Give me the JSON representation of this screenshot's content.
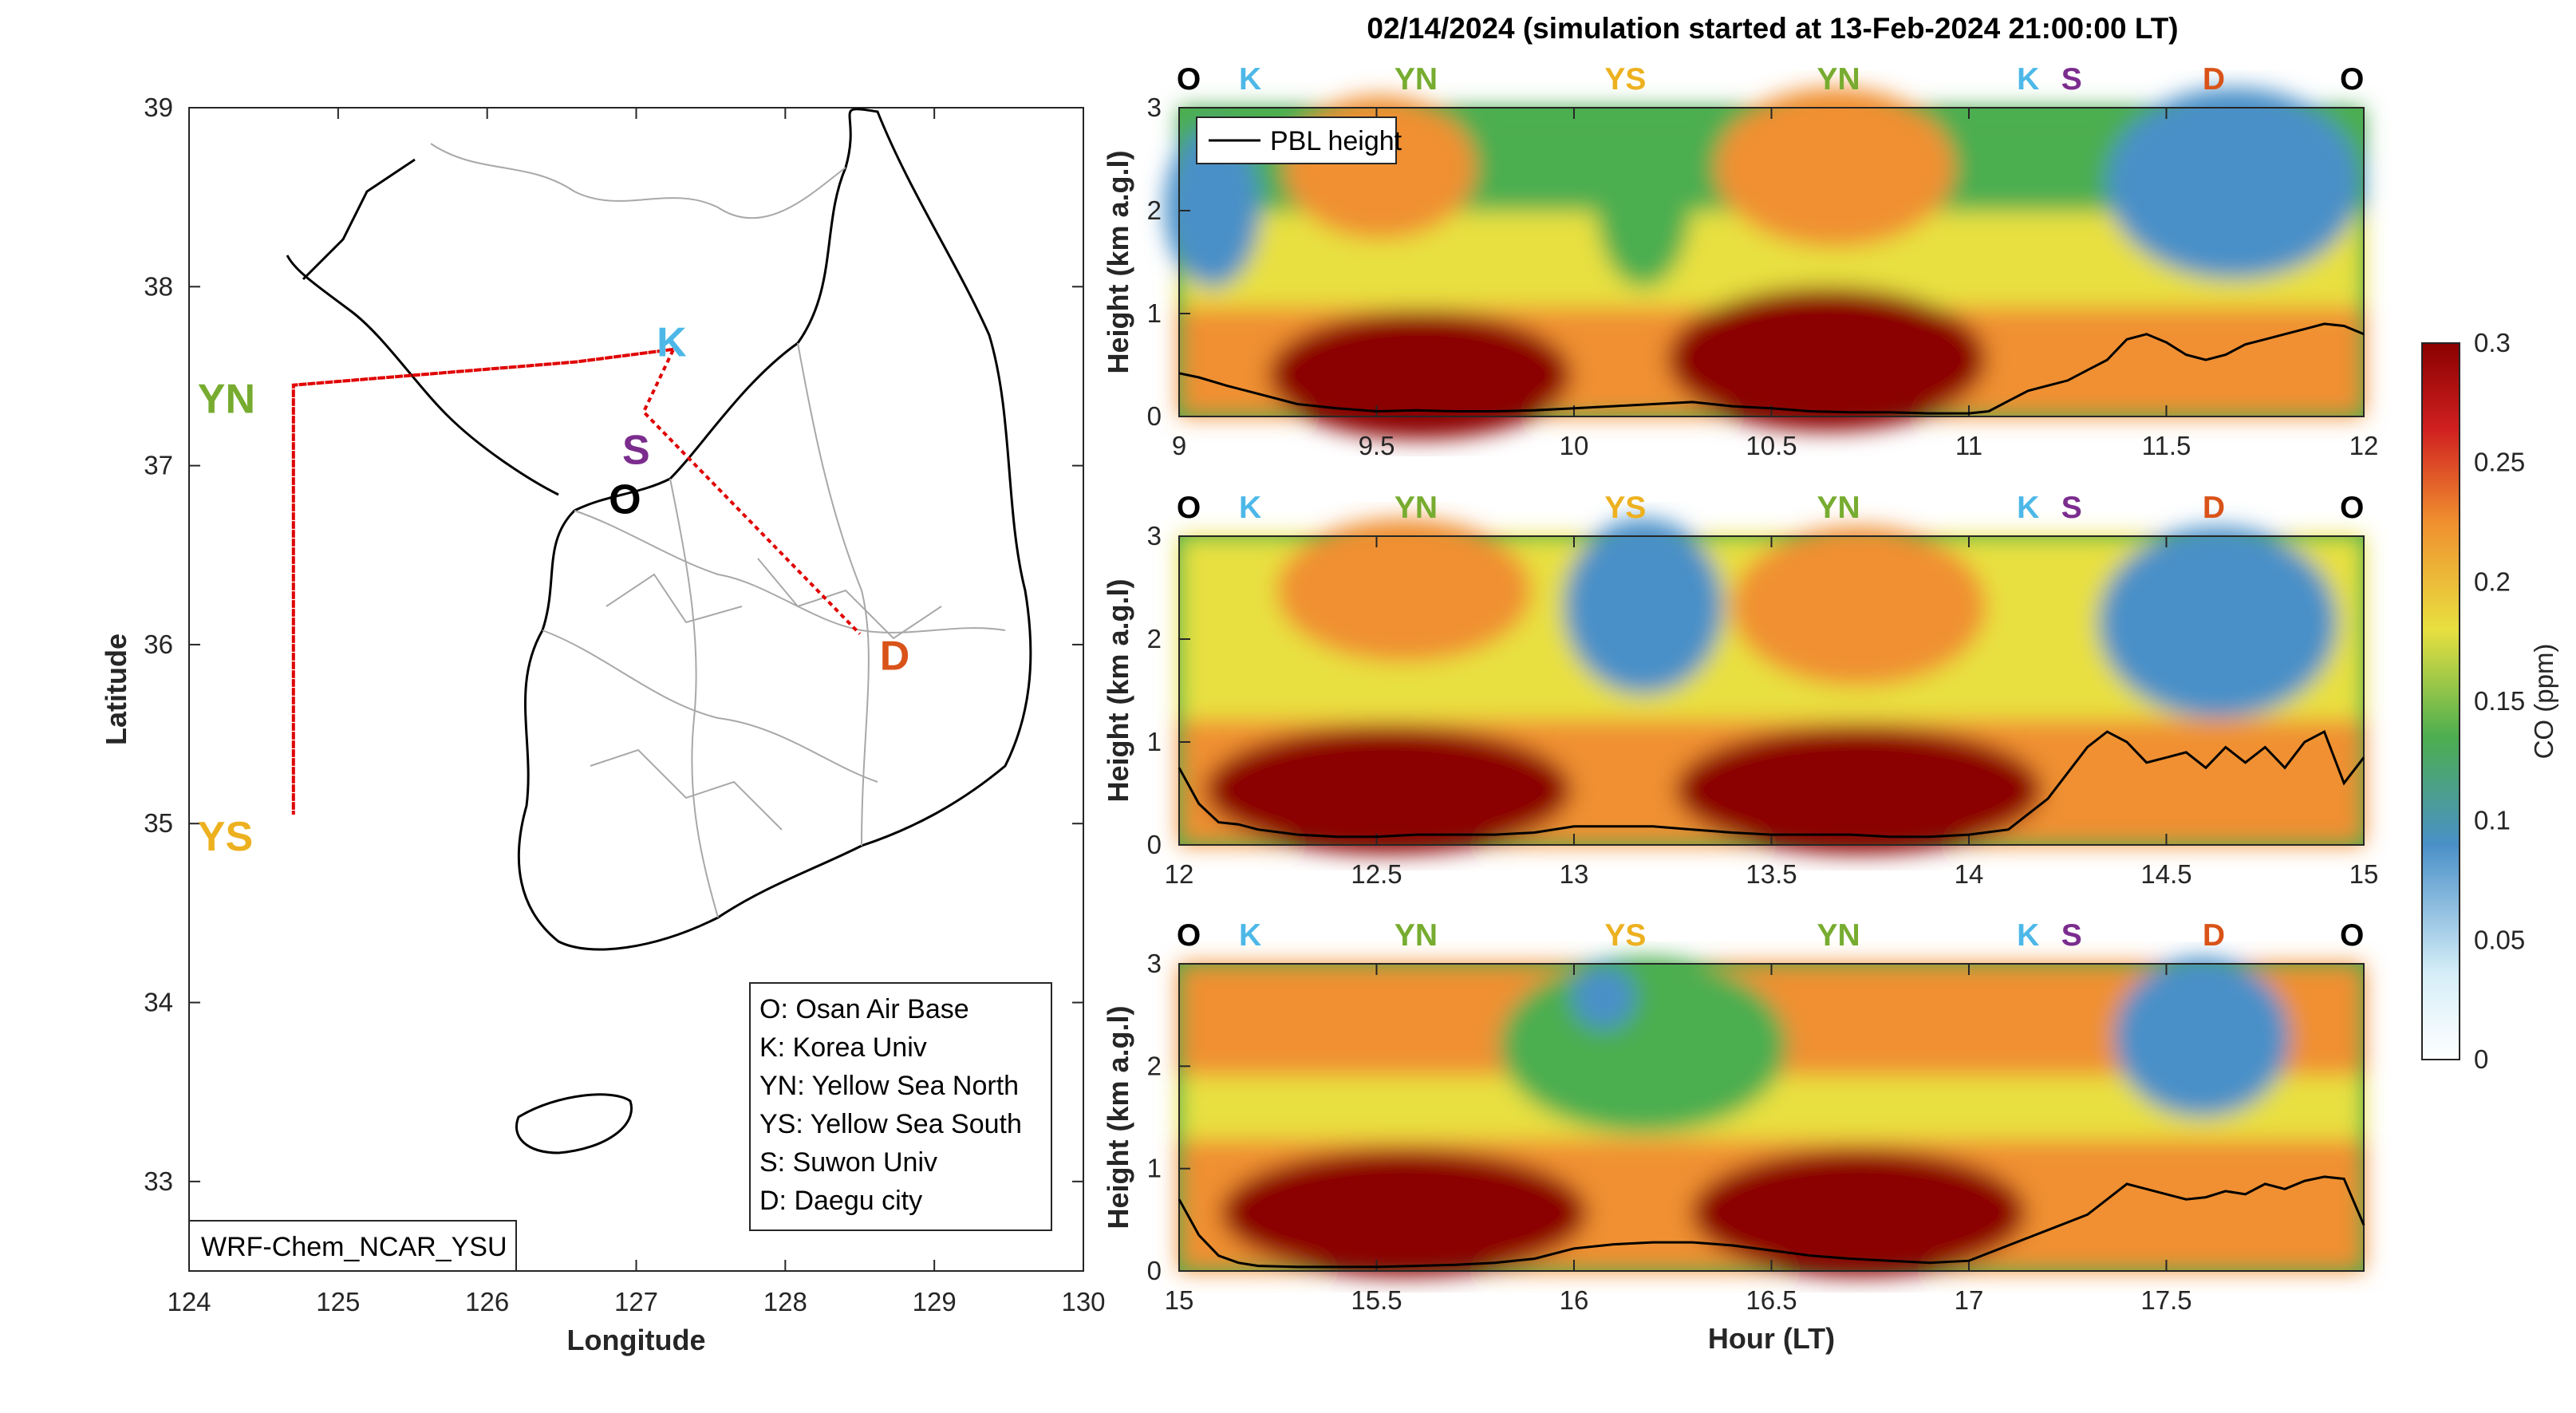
{
  "title": "02/14/2024 (simulation started at 13-Feb-2024 21:00:00 LT)",
  "colors": {
    "O": "#000000",
    "K": "#4db8e8",
    "S": "#7b2d8e",
    "D": "#d95319",
    "YN": "#77ac30",
    "YS": "#edb120",
    "track": "#e00000",
    "pbl": "#000000"
  },
  "chart_data": [
    {
      "type": "map",
      "xlabel": "Longitude",
      "ylabel": "Latitude",
      "xlim": [
        124,
        130
      ],
      "ylim": [
        32.5,
        39
      ],
      "xticks": [
        "124",
        "125",
        "126",
        "127",
        "128",
        "129",
        "130"
      ],
      "yticks": [
        "33",
        "34",
        "35",
        "36",
        "37",
        "38",
        "39"
      ],
      "model_label": "WRF-Chem_NCAR_YSU",
      "locations": [
        {
          "code": "K",
          "name": "Korea Univ",
          "lon": 127.03,
          "lat": 37.59
        },
        {
          "code": "S",
          "name": "Suwon Univ",
          "lon": 126.96,
          "lat": 37.21
        },
        {
          "code": "O",
          "name": "Osan Air Base",
          "lon": 127.03,
          "lat": 37.09
        },
        {
          "code": "YN",
          "name": "Yellow Sea North",
          "lon": 124.7,
          "lat": 37.45
        },
        {
          "code": "YS",
          "name": "Yellow Sea South",
          "lon": 124.7,
          "lat": 35.05
        },
        {
          "code": "D",
          "name": "Daegu city",
          "lon": 128.5,
          "lat": 36.06
        }
      ],
      "legend": [
        "O: Osan Air Base",
        "K: Korea Univ",
        "YN: Yellow Sea North",
        "YS: Yellow Sea South",
        "S: Suwon Univ",
        "D: Daegu city"
      ],
      "flight_track": [
        [
          127.25,
          37.65
        ],
        [
          126.6,
          37.58
        ],
        [
          124.7,
          37.45
        ],
        [
          124.7,
          35.05
        ],
        [
          124.7,
          37.45
        ],
        [
          126.6,
          37.58
        ],
        [
          127.25,
          37.65
        ],
        [
          127.05,
          37.3
        ],
        [
          128.5,
          36.06
        ]
      ]
    },
    {
      "type": "heatmap",
      "ylabel": "Height (km a.g.l)",
      "xlim": [
        9,
        12
      ],
      "ylim": [
        0,
        3
      ],
      "xticks": [
        "9",
        "9.5",
        "10",
        "10.5",
        "11",
        "11.5",
        "12"
      ],
      "yticks": [
        "0",
        "1",
        "2",
        "3"
      ],
      "legend": [
        "PBL height"
      ],
      "site_labels": [
        {
          "label": "O",
          "x": 9.0
        },
        {
          "label": "K",
          "x": 9.18
        },
        {
          "label": "YN",
          "x": 9.6
        },
        {
          "label": "YS",
          "x": 10.13
        },
        {
          "label": "YN",
          "x": 10.67
        },
        {
          "label": "K",
          "x": 11.15
        },
        {
          "label": "S",
          "x": 11.26
        },
        {
          "label": "D",
          "x": 11.62
        },
        {
          "label": "O",
          "x": 11.97
        }
      ],
      "pbl_height": {
        "x": [
          9.0,
          9.05,
          9.12,
          9.2,
          9.3,
          9.4,
          9.5,
          9.6,
          9.7,
          9.8,
          9.9,
          10.0,
          10.1,
          10.2,
          10.3,
          10.4,
          10.5,
          10.6,
          10.7,
          10.8,
          10.9,
          11.0,
          11.05,
          11.1,
          11.15,
          11.2,
          11.25,
          11.3,
          11.35,
          11.4,
          11.45,
          11.5,
          11.55,
          11.6,
          11.65,
          11.7,
          11.75,
          11.8,
          11.85,
          11.9,
          11.95,
          12.0
        ],
        "y": [
          0.42,
          0.38,
          0.3,
          0.22,
          0.12,
          0.08,
          0.05,
          0.06,
          0.05,
          0.05,
          0.06,
          0.08,
          0.1,
          0.12,
          0.14,
          0.1,
          0.08,
          0.05,
          0.04,
          0.04,
          0.03,
          0.03,
          0.05,
          0.15,
          0.25,
          0.3,
          0.35,
          0.45,
          0.55,
          0.75,
          0.8,
          0.72,
          0.6,
          0.55,
          0.6,
          0.7,
          0.75,
          0.8,
          0.85,
          0.9,
          0.88,
          0.8
        ]
      },
      "co_pattern": "High CO (~0.28-0.3 ppm) below 0.8 km during 9.3-9.8 and 10.4-11.0 LT; moderate (~0.15-0.22 ppm) between 1-3 km; low (~0.1 ppm) aloft near 11.3-11.9 LT"
    },
    {
      "type": "heatmap",
      "ylabel": "Height (km a.g.l)",
      "xlim": [
        12,
        15
      ],
      "ylim": [
        0,
        3
      ],
      "xticks": [
        "12",
        "12.5",
        "13",
        "13.5",
        "14",
        "14.5",
        "15"
      ],
      "yticks": [
        "0",
        "1",
        "2",
        "3"
      ],
      "site_labels": [
        {
          "label": "O",
          "x": 12.0
        },
        {
          "label": "K",
          "x": 12.18
        },
        {
          "label": "YN",
          "x": 12.6
        },
        {
          "label": "YS",
          "x": 13.13
        },
        {
          "label": "YN",
          "x": 13.67
        },
        {
          "label": "K",
          "x": 14.15
        },
        {
          "label": "S",
          "x": 14.26
        },
        {
          "label": "D",
          "x": 14.62
        },
        {
          "label": "O",
          "x": 14.97
        }
      ],
      "pbl_height": {
        "x": [
          12.0,
          12.05,
          12.1,
          12.15,
          12.2,
          12.3,
          12.4,
          12.5,
          12.6,
          12.7,
          12.8,
          12.9,
          13.0,
          13.1,
          13.2,
          13.3,
          13.4,
          13.5,
          13.6,
          13.7,
          13.8,
          13.9,
          14.0,
          14.1,
          14.15,
          14.2,
          14.25,
          14.3,
          14.35,
          14.4,
          14.45,
          14.5,
          14.55,
          14.6,
          14.65,
          14.7,
          14.75,
          14.8,
          14.85,
          14.9,
          14.95,
          15.0
        ],
        "y": [
          0.75,
          0.4,
          0.22,
          0.2,
          0.15,
          0.1,
          0.08,
          0.08,
          0.1,
          0.1,
          0.1,
          0.12,
          0.18,
          0.18,
          0.18,
          0.15,
          0.12,
          0.1,
          0.1,
          0.1,
          0.08,
          0.08,
          0.1,
          0.15,
          0.3,
          0.45,
          0.7,
          0.95,
          1.1,
          1.0,
          0.8,
          0.85,
          0.9,
          0.75,
          0.95,
          0.8,
          0.95,
          0.75,
          1.0,
          1.1,
          0.6,
          0.85
        ]
      },
      "co_pattern": "High CO (~0.28-0.3 ppm) below 0.8 km during 12.2-12.8 and 13.4-14.1 LT; low (~0.1 ppm) aloft around 13.0-13.3 and 14.3-14.9 LT"
    },
    {
      "type": "heatmap",
      "ylabel": "Height (km a.g.l)",
      "xlabel": "Hour (LT)",
      "xlim": [
        15,
        18
      ],
      "ylim": [
        0,
        3
      ],
      "xticks": [
        "15",
        "15.5",
        "16",
        "16.5",
        "17",
        "17.5"
      ],
      "yticks": [
        "0",
        "1",
        "2",
        "3"
      ],
      "site_labels": [
        {
          "label": "O",
          "x": 15.0
        },
        {
          "label": "K",
          "x": 15.18
        },
        {
          "label": "YN",
          "x": 15.6
        },
        {
          "label": "YS",
          "x": 16.13
        },
        {
          "label": "YN",
          "x": 16.67
        },
        {
          "label": "K",
          "x": 17.15
        },
        {
          "label": "S",
          "x": 17.26
        },
        {
          "label": "D",
          "x": 17.62
        },
        {
          "label": "O",
          "x": 17.97
        }
      ],
      "pbl_height": {
        "x": [
          15.0,
          15.05,
          15.1,
          15.15,
          15.2,
          15.3,
          15.4,
          15.5,
          15.6,
          15.7,
          15.8,
          15.9,
          16.0,
          16.1,
          16.2,
          16.3,
          16.4,
          16.5,
          16.6,
          16.7,
          16.8,
          16.9,
          17.0,
          17.1,
          17.2,
          17.3,
          17.35,
          17.4,
          17.45,
          17.5,
          17.55,
          17.6,
          17.65,
          17.7,
          17.75,
          17.8,
          17.85,
          17.9,
          17.95,
          18.0
        ],
        "y": [
          0.7,
          0.35,
          0.15,
          0.08,
          0.05,
          0.04,
          0.04,
          0.04,
          0.05,
          0.06,
          0.08,
          0.12,
          0.22,
          0.26,
          0.28,
          0.28,
          0.25,
          0.2,
          0.15,
          0.12,
          0.1,
          0.08,
          0.1,
          0.25,
          0.4,
          0.55,
          0.7,
          0.85,
          0.8,
          0.75,
          0.7,
          0.72,
          0.78,
          0.75,
          0.85,
          0.8,
          0.88,
          0.92,
          0.9,
          0.45
        ]
      },
      "co_pattern": "High CO (~0.28-0.3 ppm) below 0.9 km during 15.1-15.8 and 16.4-16.9 LT; moderate (~0.12-0.15 ppm) aloft 15.9-16.3 LT; low near 17.6 LT"
    },
    {
      "type": "colorbar",
      "label": "CO (ppm)",
      "range": [
        0,
        0.3
      ],
      "ticks": [
        "0",
        "0.05",
        "0.1",
        "0.15",
        "0.2",
        "0.25",
        "0.3"
      ],
      "colormap": [
        "#ffffff",
        "#d0ecf8",
        "#4a90c8",
        "#4cae50",
        "#e8e040",
        "#f09030",
        "#d02020",
        "#8b0000"
      ]
    }
  ]
}
